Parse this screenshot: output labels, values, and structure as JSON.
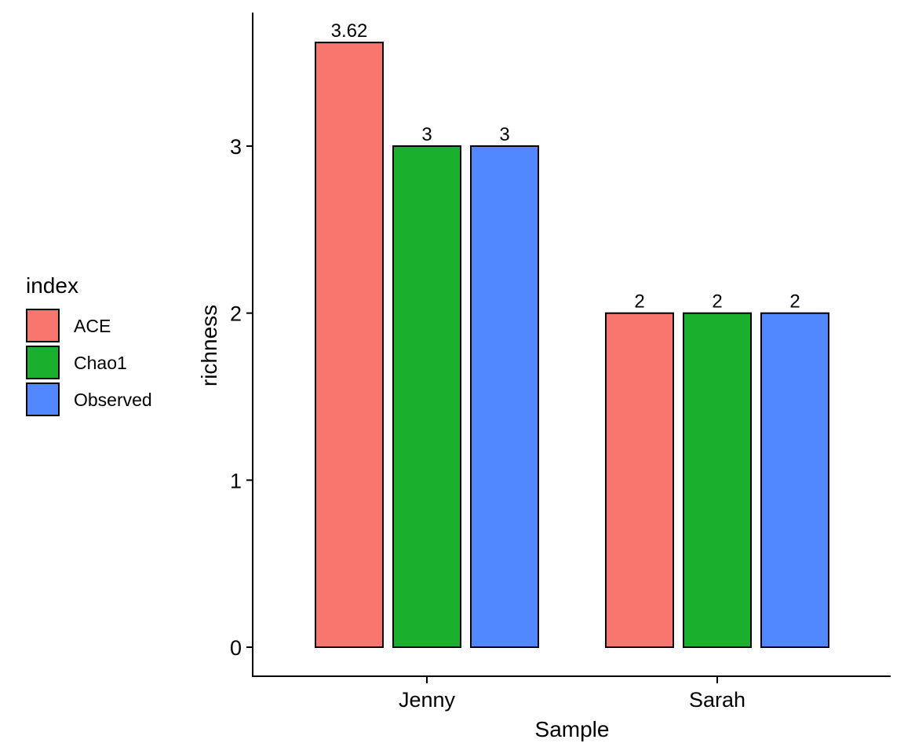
{
  "chart_data": {
    "type": "bar",
    "title": "",
    "xlabel": "Sample",
    "ylabel": "richness",
    "categories": [
      "Jenny",
      "Sarah"
    ],
    "series": [
      {
        "name": "ACE",
        "color": "#F8766D",
        "values": [
          3.62,
          2
        ],
        "labels": [
          "3.62",
          "2"
        ]
      },
      {
        "name": "Chao1",
        "color": "#1AB02E",
        "values": [
          3,
          2
        ],
        "labels": [
          "3",
          "2"
        ]
      },
      {
        "name": "Observed",
        "color": "#5288FF",
        "values": [
          3,
          2
        ],
        "labels": [
          "3",
          "2"
        ]
      }
    ],
    "ylim": [
      0,
      3.62
    ],
    "yticks": [
      "0",
      "1",
      "2",
      "3"
    ],
    "grid": false,
    "legend": {
      "title": "index",
      "position": "left"
    }
  }
}
